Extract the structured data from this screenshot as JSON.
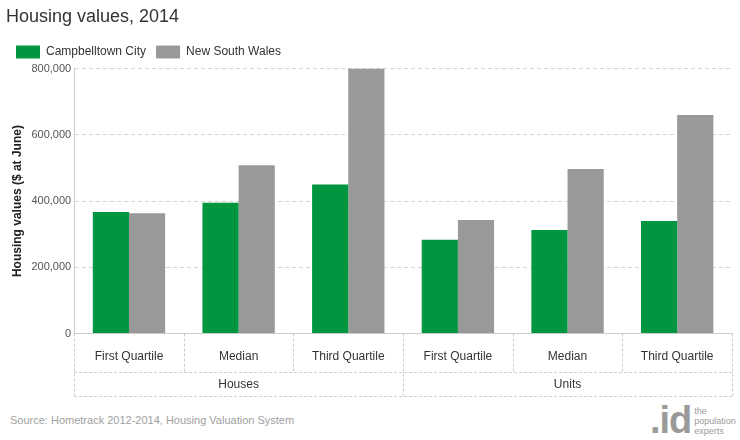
{
  "chart_data": {
    "type": "bar",
    "title": "Housing values, 2014",
    "y_label": "Housing values ($ at June)",
    "categories": [
      "First Quartile",
      "Median",
      "Third Quartile",
      "First Quartile",
      "Median",
      "Third Quartile"
    ],
    "groups": [
      "Houses",
      "Houses",
      "Houses",
      "Units",
      "Units",
      "Units"
    ],
    "series": [
      {
        "name": "Campbelltown City",
        "color": "#00963f",
        "values": [
          367000,
          395000,
          450000,
          283000,
          313000,
          340000
        ]
      },
      {
        "name": "New South Wales",
        "color": "#999999",
        "values": [
          363000,
          508000,
          800000,
          343000,
          497000,
          660000
        ]
      }
    ],
    "ylim": [
      0,
      800000
    ],
    "yticks": [
      0,
      {
        "value": 200000,
        "label": "200,000"
      },
      {
        "value": 400000,
        "label": "400,000"
      },
      {
        "value": 600000,
        "label": "600,000"
      },
      {
        "value": 800000,
        "label": "800,000"
      }
    ],
    "grid": true,
    "legend": "top left",
    "source": "Source: Hometrack 2012-2014, Housing Valuation System",
    "logo": ".id",
    "logo_text": "the population experts"
  }
}
